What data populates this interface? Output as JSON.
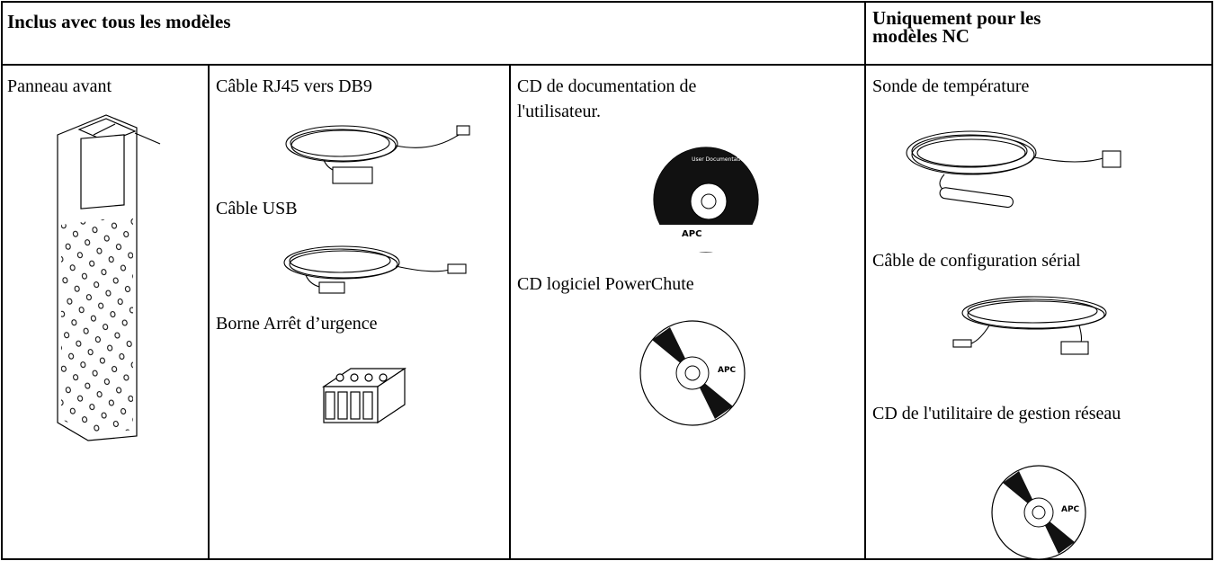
{
  "header": {
    "included": "Inclus avec tous les modèles",
    "nc_only": "Uniquement pour les modèles NC"
  },
  "columns": [
    {
      "items": [
        "Panneau avant"
      ]
    },
    {
      "items": [
        "Câble RJ45 vers DB9",
        "Câble USB",
        "Borne Arrêt d’urgence"
      ]
    },
    {
      "items": [
        "CD de documentation de l'utilisateur.",
        "CD logiciel PowerChute"
      ]
    },
    {
      "items": [
        "Sonde de température",
        "Câble de configuration sérial",
        "CD de l'utilitaire de gestion réseau"
      ]
    }
  ],
  "image_text": {
    "user_documentation": "User Documentation",
    "logo": "APC"
  }
}
